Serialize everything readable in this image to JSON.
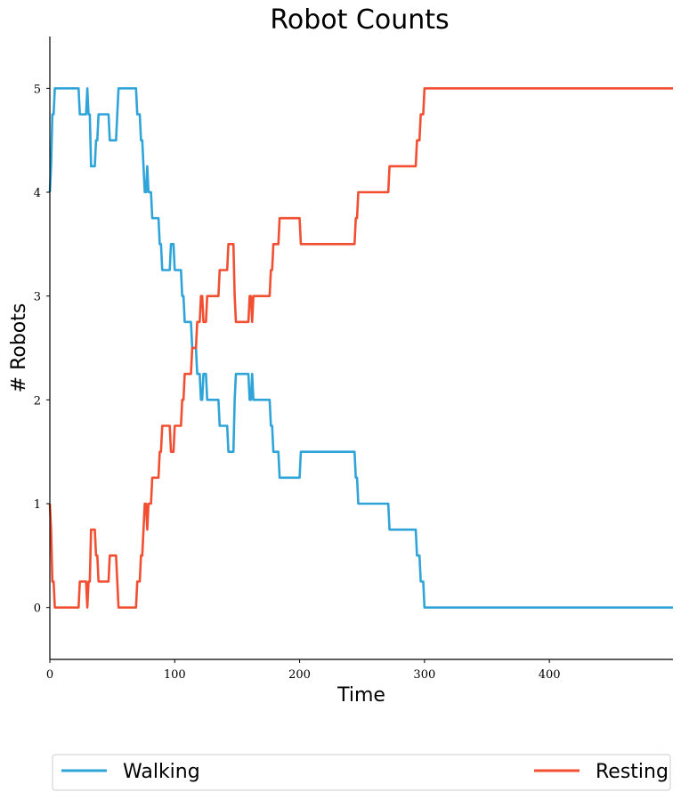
{
  "chart_data": {
    "type": "line",
    "title": "Robot Counts",
    "xlabel": "Time",
    "ylabel": "# Robots",
    "xlim": [
      0,
      499
    ],
    "ylim": [
      -0.5,
      5.5
    ],
    "xticks": [
      0,
      100,
      200,
      300,
      400
    ],
    "yticks": [
      0,
      1,
      2,
      3,
      4,
      5
    ],
    "grid": false,
    "legend_position": "bottom",
    "series": [
      {
        "name": "Walking",
        "color": "#2ea4d8",
        "points": [
          [
            0,
            4
          ],
          [
            1,
            4.25
          ],
          [
            2,
            4.75
          ],
          [
            3,
            4.75
          ],
          [
            4,
            5
          ],
          [
            23,
            5
          ],
          [
            24,
            4.75
          ],
          [
            29,
            4.75
          ],
          [
            30,
            5
          ],
          [
            31,
            4.75
          ],
          [
            32,
            4.75
          ],
          [
            33,
            4.25
          ],
          [
            36,
            4.25
          ],
          [
            37,
            4.5
          ],
          [
            38,
            4.5
          ],
          [
            39,
            4.75
          ],
          [
            47,
            4.75
          ],
          [
            48,
            4.5
          ],
          [
            53,
            4.5
          ],
          [
            54,
            4.75
          ],
          [
            55,
            5
          ],
          [
            69,
            5
          ],
          [
            70,
            4.75
          ],
          [
            72,
            4.75
          ],
          [
            73,
            4.5
          ],
          [
            74,
            4.5
          ],
          [
            75,
            4.25
          ],
          [
            76,
            4
          ],
          [
            77,
            4
          ],
          [
            78,
            4.25
          ],
          [
            79,
            4
          ],
          [
            81,
            4
          ],
          [
            82,
            3.75
          ],
          [
            87,
            3.75
          ],
          [
            88,
            3.5
          ],
          [
            89,
            3.5
          ],
          [
            90,
            3.25
          ],
          [
            96,
            3.25
          ],
          [
            97,
            3.5
          ],
          [
            99,
            3.5
          ],
          [
            100,
            3.25
          ],
          [
            105,
            3.25
          ],
          [
            106,
            3
          ],
          [
            107,
            3
          ],
          [
            108,
            2.75
          ],
          [
            113,
            2.75
          ],
          [
            114,
            2.5
          ],
          [
            117,
            2.5
          ],
          [
            118,
            2.25
          ],
          [
            120,
            2.25
          ],
          [
            121,
            2
          ],
          [
            122,
            2
          ],
          [
            123,
            2.25
          ],
          [
            125,
            2.25
          ],
          [
            126,
            2
          ],
          [
            135,
            2
          ],
          [
            136,
            1.75
          ],
          [
            142,
            1.75
          ],
          [
            143,
            1.5
          ],
          [
            147,
            1.5
          ],
          [
            148,
            2
          ],
          [
            149,
            2.25
          ],
          [
            159,
            2.25
          ],
          [
            160,
            2
          ],
          [
            161,
            2
          ],
          [
            162,
            2.25
          ],
          [
            163,
            2
          ],
          [
            176,
            2
          ],
          [
            177,
            1.75
          ],
          [
            178,
            1.75
          ],
          [
            179,
            1.5
          ],
          [
            183,
            1.5
          ],
          [
            184,
            1.25
          ],
          [
            200,
            1.25
          ],
          [
            201,
            1.5
          ],
          [
            244,
            1.5
          ],
          [
            245,
            1.25
          ],
          [
            246,
            1.25
          ],
          [
            247,
            1
          ],
          [
            271,
            1
          ],
          [
            272,
            0.75
          ],
          [
            293,
            0.75
          ],
          [
            294,
            0.5
          ],
          [
            296,
            0.5
          ],
          [
            297,
            0.25
          ],
          [
            299,
            0.25
          ],
          [
            300,
            0
          ],
          [
            499,
            0
          ]
        ]
      },
      {
        "name": "Resting",
        "color": "#f24f32",
        "points": [
          [
            0,
            1
          ],
          [
            1,
            0.75
          ],
          [
            2,
            0.25
          ],
          [
            3,
            0.25
          ],
          [
            4,
            0
          ],
          [
            23,
            0
          ],
          [
            24,
            0.25
          ],
          [
            29,
            0.25
          ],
          [
            30,
            0
          ],
          [
            31,
            0.25
          ],
          [
            32,
            0.25
          ],
          [
            33,
            0.75
          ],
          [
            36,
            0.75
          ],
          [
            37,
            0.5
          ],
          [
            38,
            0.5
          ],
          [
            39,
            0.25
          ],
          [
            47,
            0.25
          ],
          [
            48,
            0.5
          ],
          [
            53,
            0.5
          ],
          [
            54,
            0.25
          ],
          [
            55,
            0
          ],
          [
            69,
            0
          ],
          [
            70,
            0.25
          ],
          [
            72,
            0.25
          ],
          [
            73,
            0.5
          ],
          [
            74,
            0.5
          ],
          [
            75,
            0.75
          ],
          [
            76,
            1
          ],
          [
            77,
            1
          ],
          [
            78,
            0.75
          ],
          [
            79,
            1
          ],
          [
            81,
            1
          ],
          [
            82,
            1.25
          ],
          [
            87,
            1.25
          ],
          [
            88,
            1.5
          ],
          [
            89,
            1.5
          ],
          [
            90,
            1.75
          ],
          [
            96,
            1.75
          ],
          [
            97,
            1.5
          ],
          [
            99,
            1.5
          ],
          [
            100,
            1.75
          ],
          [
            105,
            1.75
          ],
          [
            106,
            2
          ],
          [
            107,
            2
          ],
          [
            108,
            2.25
          ],
          [
            113,
            2.25
          ],
          [
            114,
            2.5
          ],
          [
            117,
            2.5
          ],
          [
            118,
            2.75
          ],
          [
            120,
            2.75
          ],
          [
            121,
            3
          ],
          [
            122,
            3
          ],
          [
            123,
            2.75
          ],
          [
            125,
            2.75
          ],
          [
            126,
            3
          ],
          [
            135,
            3
          ],
          [
            136,
            3.25
          ],
          [
            142,
            3.25
          ],
          [
            143,
            3.5
          ],
          [
            147,
            3.5
          ],
          [
            148,
            3
          ],
          [
            149,
            2.75
          ],
          [
            159,
            2.75
          ],
          [
            160,
            3
          ],
          [
            161,
            3
          ],
          [
            162,
            2.75
          ],
          [
            163,
            3
          ],
          [
            176,
            3
          ],
          [
            177,
            3.25
          ],
          [
            178,
            3.25
          ],
          [
            179,
            3.5
          ],
          [
            183,
            3.5
          ],
          [
            184,
            3.75
          ],
          [
            200,
            3.75
          ],
          [
            201,
            3.5
          ],
          [
            244,
            3.5
          ],
          [
            245,
            3.75
          ],
          [
            246,
            3.75
          ],
          [
            247,
            4
          ],
          [
            271,
            4
          ],
          [
            272,
            4.25
          ],
          [
            293,
            4.25
          ],
          [
            294,
            4.5
          ],
          [
            296,
            4.5
          ],
          [
            297,
            4.75
          ],
          [
            299,
            4.75
          ],
          [
            300,
            5
          ],
          [
            499,
            5
          ]
        ]
      }
    ]
  }
}
